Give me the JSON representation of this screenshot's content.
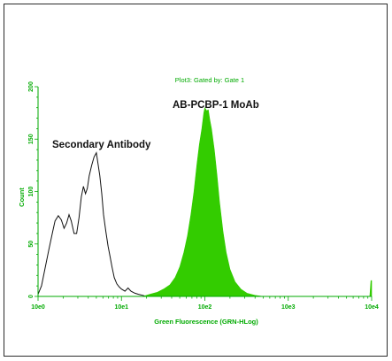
{
  "colors": {
    "accent": "#33cc00",
    "axis": "#00aa00",
    "label": "#00aa00",
    "ink": "#111111"
  },
  "chart_data": {
    "type": "area",
    "title": "Plot3: Gated by: Gate 1",
    "xlabel": "Green Fluorescence (GRN-HLog)",
    "ylabel": "Count",
    "x_scale": "log",
    "xlim": [
      1,
      10000
    ],
    "ylim": [
      0,
      200
    ],
    "x_tick_labels": [
      "10e0",
      "10e1",
      "10e2",
      "10e3",
      "10e4"
    ],
    "x_tick_values": [
      1,
      10,
      100,
      1000,
      10000
    ],
    "y_tick_values": [
      0,
      50,
      100,
      150,
      200
    ],
    "annotations": [
      "Secondary Antibody",
      "AB-PCBP-1 MoAb"
    ],
    "grid": false,
    "series": [
      {
        "name": "Secondary Antibody",
        "style": "line",
        "color": "#111111",
        "points": [
          [
            1.0,
            2
          ],
          [
            1.1,
            10
          ],
          [
            1.2,
            25
          ],
          [
            1.35,
            45
          ],
          [
            1.5,
            62
          ],
          [
            1.6,
            72
          ],
          [
            1.75,
            77
          ],
          [
            1.9,
            73
          ],
          [
            2.05,
            65
          ],
          [
            2.2,
            70
          ],
          [
            2.35,
            78
          ],
          [
            2.5,
            72
          ],
          [
            2.7,
            60
          ],
          [
            2.9,
            60
          ],
          [
            3.1,
            75
          ],
          [
            3.3,
            95
          ],
          [
            3.5,
            105
          ],
          [
            3.7,
            98
          ],
          [
            3.9,
            103
          ],
          [
            4.1,
            115
          ],
          [
            4.4,
            125
          ],
          [
            4.7,
            133
          ],
          [
            5.0,
            137
          ],
          [
            5.2,
            128
          ],
          [
            5.5,
            115
          ],
          [
            5.8,
            98
          ],
          [
            6.1,
            78
          ],
          [
            6.5,
            62
          ],
          [
            6.9,
            48
          ],
          [
            7.3,
            38
          ],
          [
            7.7,
            28
          ],
          [
            8.2,
            18
          ],
          [
            8.8,
            12
          ],
          [
            9.4,
            9
          ],
          [
            10.0,
            7
          ],
          [
            11.0,
            5
          ],
          [
            12.0,
            8
          ],
          [
            13.0,
            5
          ],
          [
            14.5,
            3
          ],
          [
            16.0,
            2
          ],
          [
            18.0,
            1
          ],
          [
            20.0,
            0
          ]
        ]
      },
      {
        "name": "AB-PCBP-1 MoAb",
        "style": "filled",
        "color": "#33cc00",
        "points": [
          [
            18,
            0
          ],
          [
            22,
            2
          ],
          [
            27,
            4
          ],
          [
            32,
            7
          ],
          [
            38,
            11
          ],
          [
            44,
            18
          ],
          [
            50,
            28
          ],
          [
            56,
            42
          ],
          [
            62,
            58
          ],
          [
            68,
            78
          ],
          [
            74,
            100
          ],
          [
            80,
            125
          ],
          [
            86,
            145
          ],
          [
            92,
            160
          ],
          [
            97,
            175
          ],
          [
            100,
            180
          ],
          [
            105,
            177
          ],
          [
            110,
            178
          ],
          [
            115,
            168
          ],
          [
            120,
            160
          ],
          [
            130,
            140
          ],
          [
            140,
            115
          ],
          [
            150,
            90
          ],
          [
            165,
            62
          ],
          [
            180,
            42
          ],
          [
            200,
            26
          ],
          [
            230,
            14
          ],
          [
            270,
            7
          ],
          [
            320,
            3
          ],
          [
            400,
            1
          ],
          [
            500,
            0
          ],
          [
            9500,
            0
          ],
          [
            9800,
            15
          ],
          [
            10000,
            15
          ]
        ]
      }
    ]
  }
}
